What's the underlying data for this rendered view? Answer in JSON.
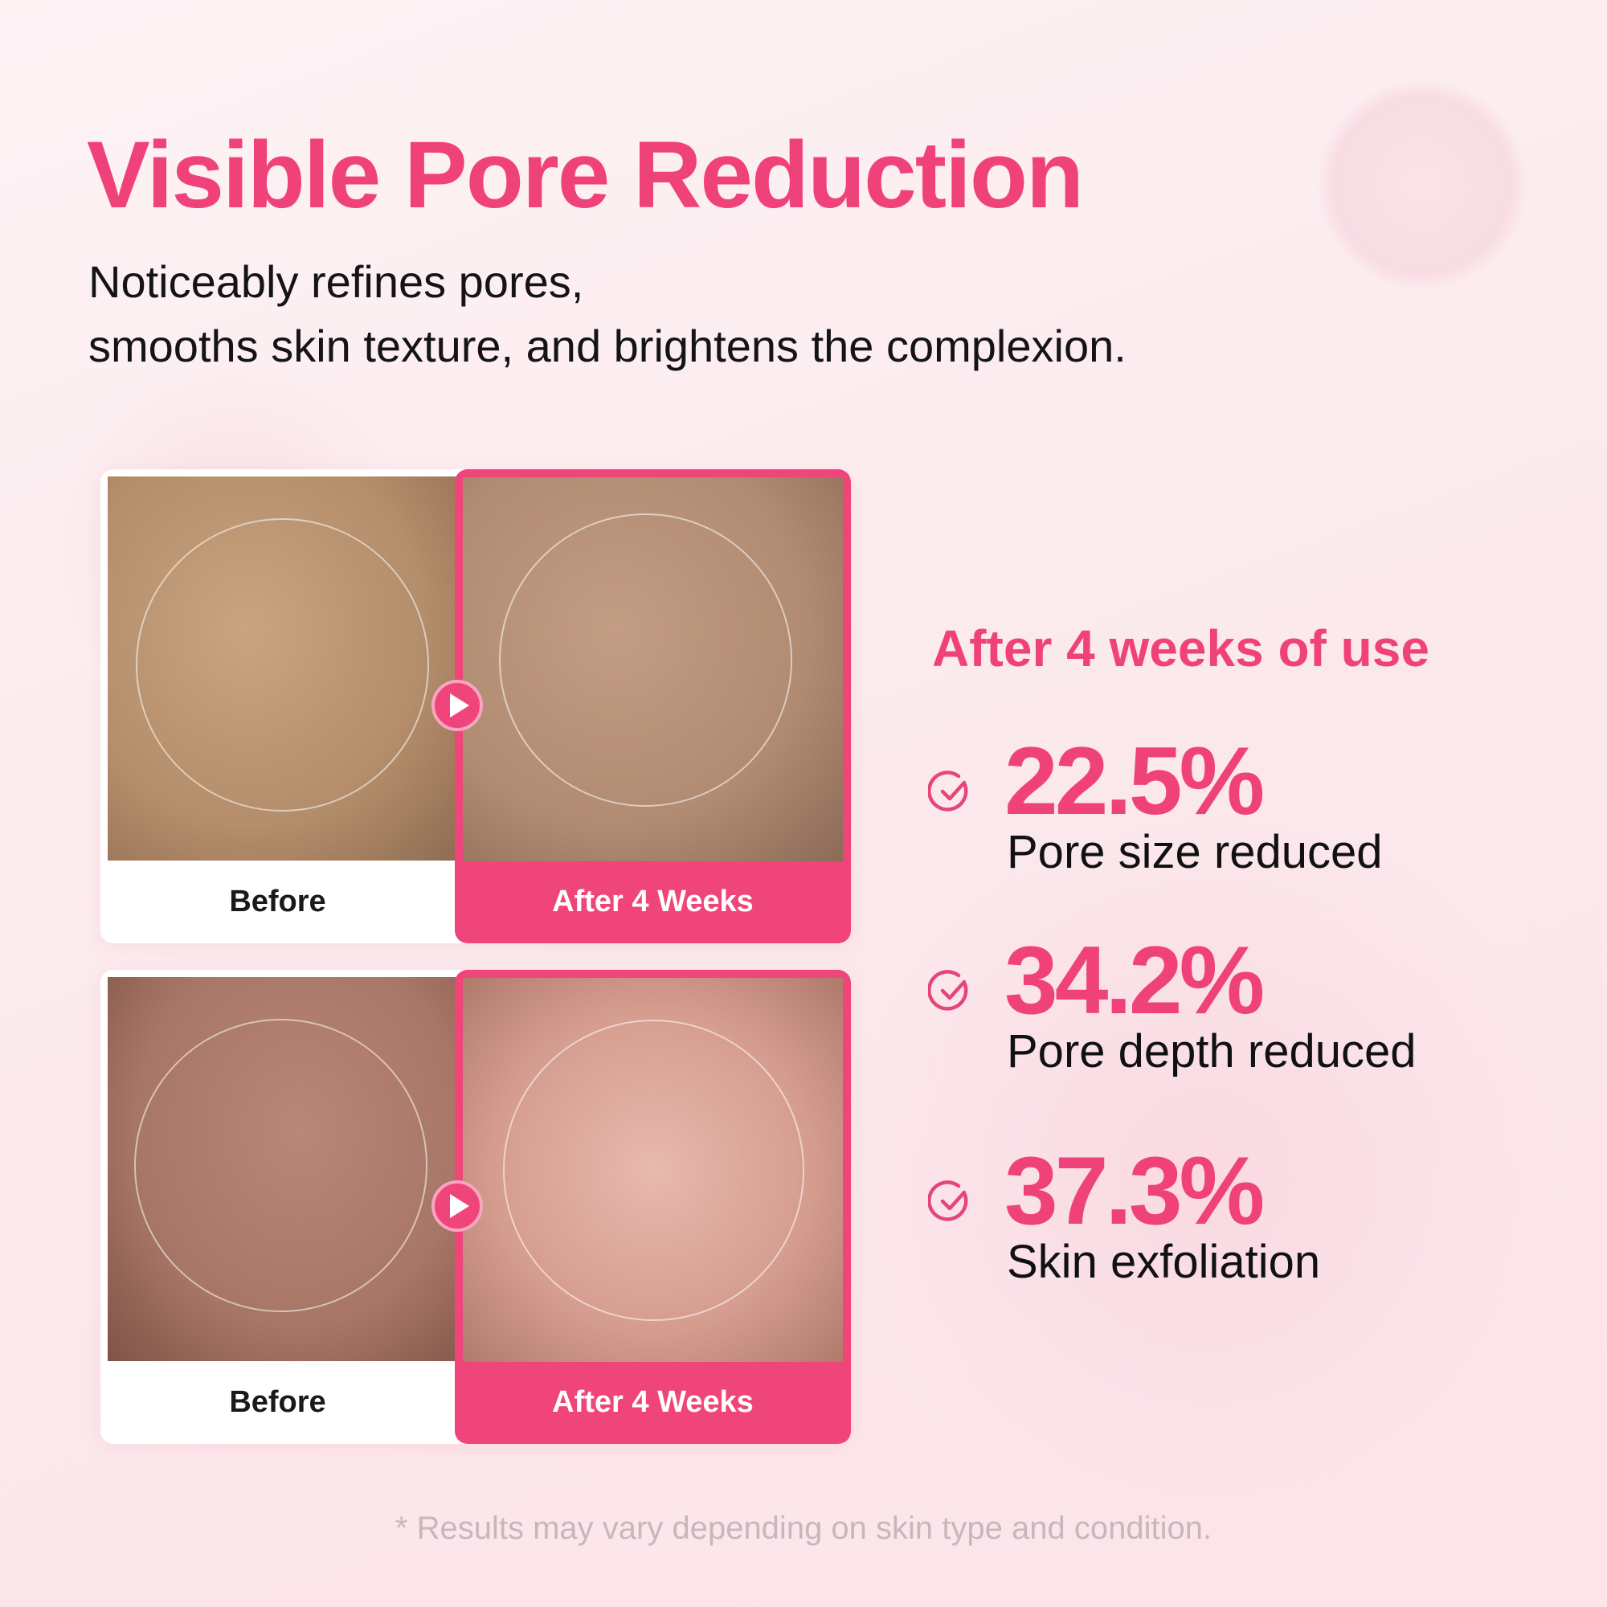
{
  "title": "Visible Pore Reduction",
  "subtitle": [
    "Noticeably refines pores,",
    "smooths skin texture, and brightens the complexion."
  ],
  "comparisons": [
    {
      "before_label": "Before",
      "after_label": "After 4 Weeks"
    },
    {
      "before_label": "Before",
      "after_label": "After 4 Weeks"
    }
  ],
  "results": {
    "heading": "After 4 weeks of use",
    "stats": [
      {
        "value": "22.5%",
        "label": "Pore size reduced",
        "icon": "check-circle-icon"
      },
      {
        "value": "34.2%",
        "label": "Pore depth reduced",
        "icon": "check-circle-icon"
      },
      {
        "value": "37.3%",
        "label": "Skin exfoliation",
        "icon": "check-circle-icon"
      }
    ]
  },
  "footnote": "* Results may vary depending on skin type and condition.",
  "colors": {
    "accent": "#f0427a",
    "text": "#141414",
    "footnote": "#c9b6bb"
  }
}
